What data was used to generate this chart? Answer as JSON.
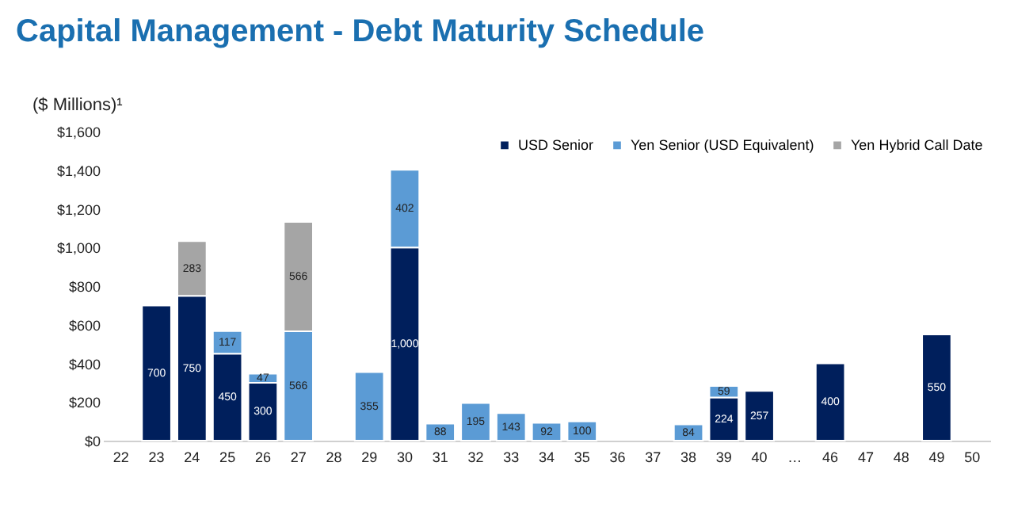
{
  "chart_data": {
    "type": "bar",
    "title": "Capital Management - Debt Maturity Schedule",
    "ylabel": "($ Millions)¹",
    "categories": [
      "22",
      "23",
      "24",
      "25",
      "26",
      "27",
      "28",
      "29",
      "30",
      "31",
      "32",
      "33",
      "34",
      "35",
      "36",
      "37",
      "38",
      "39",
      "40",
      "…",
      "46",
      "47",
      "48",
      "49",
      "50"
    ],
    "stacked": true,
    "legend": "top right",
    "grid": false,
    "ylim": [
      0,
      1600
    ],
    "yticks": [
      {
        "value": 0,
        "label": "$0"
      },
      {
        "value": 200,
        "label": "$200"
      },
      {
        "value": 400,
        "label": "$400"
      },
      {
        "value": 600,
        "label": "$600"
      },
      {
        "value": 800,
        "label": "$800"
      },
      {
        "value": 1000,
        "label": "$1,000"
      },
      {
        "value": 1200,
        "label": "$1,200"
      },
      {
        "value": 1400,
        "label": "$1,400"
      },
      {
        "value": 1600,
        "label": "$1,600"
      }
    ],
    "series": [
      {
        "name": "USD Senior",
        "color": "#001f5c",
        "values": [
          null,
          700,
          750,
          450,
          300,
          null,
          null,
          null,
          1000,
          null,
          null,
          null,
          null,
          null,
          null,
          null,
          null,
          224,
          257,
          null,
          400,
          null,
          null,
          550,
          null
        ],
        "value_labels": [
          null,
          "700",
          "750",
          "450",
          "300",
          null,
          null,
          null,
          "1,000",
          null,
          null,
          null,
          null,
          null,
          null,
          null,
          null,
          "224",
          "257",
          null,
          "400",
          null,
          null,
          "550",
          null
        ]
      },
      {
        "name": "Yen Senior (USD Equivalent)",
        "color": "#5b9bd5",
        "values": [
          null,
          null,
          null,
          117,
          47,
          566,
          null,
          355,
          402,
          88,
          195,
          143,
          92,
          100,
          null,
          null,
          84,
          59,
          null,
          null,
          null,
          null,
          null,
          null,
          null
        ],
        "value_labels": [
          null,
          null,
          null,
          "117",
          "47",
          "566",
          null,
          "355",
          "402",
          "88",
          "195",
          "143",
          "92",
          "100",
          null,
          null,
          "84",
          "59",
          null,
          null,
          null,
          null,
          null,
          null,
          null
        ]
      },
      {
        "name": "Yen Hybrid Call Date",
        "color": "#a5a5a5",
        "values": [
          null,
          null,
          283,
          null,
          null,
          566,
          null,
          null,
          null,
          null,
          null,
          null,
          null,
          null,
          null,
          null,
          null,
          null,
          null,
          null,
          null,
          null,
          null,
          null,
          null
        ],
        "value_labels": [
          null,
          null,
          "283",
          null,
          null,
          "566",
          null,
          null,
          null,
          null,
          null,
          null,
          null,
          null,
          null,
          null,
          null,
          null,
          null,
          null,
          null,
          null,
          null,
          null,
          null
        ]
      }
    ]
  }
}
